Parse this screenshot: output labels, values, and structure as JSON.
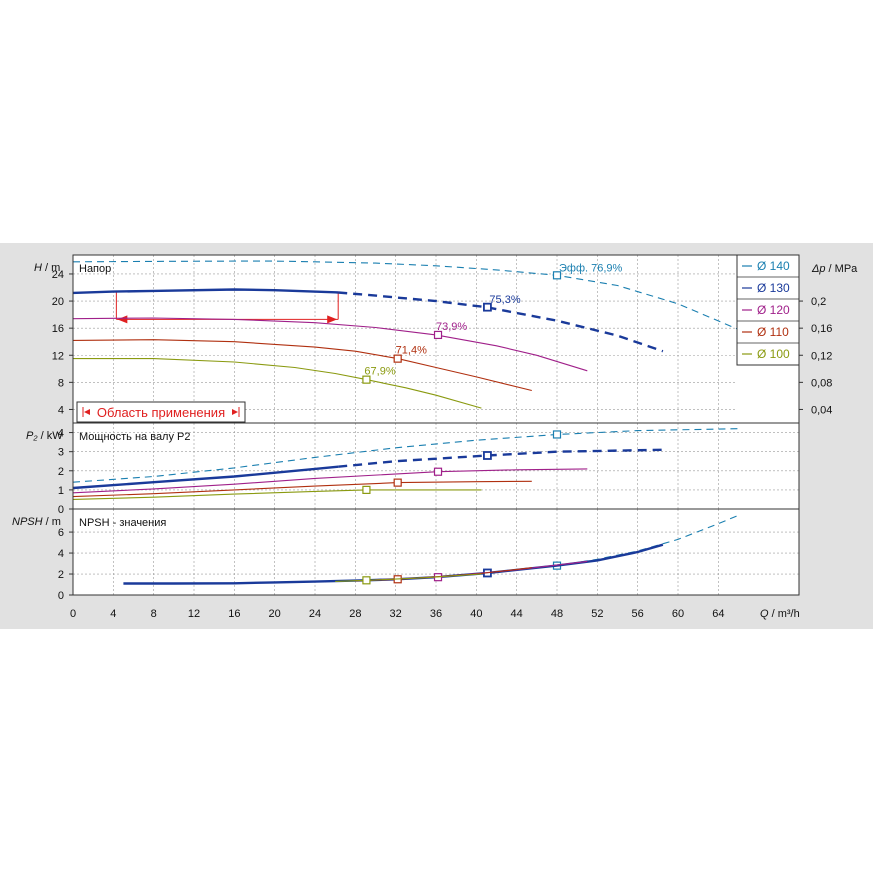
{
  "chart_data": {
    "type": "line",
    "x": {
      "label": "Q / m³/h",
      "label_var": "Q",
      "label_unit": " / m³/h",
      "range": [
        0,
        72
      ],
      "ticks": [
        0,
        4,
        8,
        12,
        16,
        20,
        24,
        28,
        32,
        36,
        40,
        44,
        48,
        52,
        56,
        60,
        64
      ]
    },
    "legend": {
      "placement": "top-right",
      "entries": [
        {
          "label": "Ø 140",
          "color": "#1a7fb0"
        },
        {
          "label": "Ø 130",
          "color": "#1a3a9a"
        },
        {
          "label": "Ø 120",
          "color": "#a0208a"
        },
        {
          "label": "Ø 110",
          "color": "#b03010"
        },
        {
          "label": "Ø 100",
          "color": "#8a9a10"
        }
      ]
    },
    "panels": [
      {
        "id": "head",
        "title": "Напор",
        "ylabel_var": "H",
        "ylabel_unit": " / m",
        "ylim": [
          2,
          26.8
        ],
        "yticks": [
          4,
          8,
          12,
          16,
          20,
          24
        ],
        "y2label_var": "Δp",
        "y2label_unit": " / MPa",
        "y2ticks": [
          "0,04",
          "0,08",
          "0,12",
          "0,16",
          "0,2"
        ],
        "y2values": [
          0.04,
          0.08,
          0.12,
          0.16,
          0.2
        ],
        "application_range": {
          "label": "Область применения",
          "x": [
            4.3,
            26.3
          ],
          "y": 21.4,
          "y_arrow": 17.3
        },
        "series": [
          {
            "legend": "Ø 140",
            "x": [
              0,
              8,
              16,
              20,
              24,
              30,
              36,
              42,
              48,
              54,
              60,
              66
            ],
            "y": [
              25.8,
              25.85,
              25.9,
              25.9,
              25.8,
              25.6,
              25.2,
              24.6,
              23.8,
              22.3,
              19.6,
              15.8
            ],
            "solid_until": 0,
            "eff": {
              "x": 48,
              "y": 23.8,
              "label": "Эфф.  76,9%"
            }
          },
          {
            "legend": "Ø 130",
            "x": [
              0,
              4,
              8,
              16,
              20,
              26,
              30,
              36,
              41,
              48,
              54,
              58.5
            ],
            "y": [
              21.2,
              21.4,
              21.5,
              21.7,
              21.6,
              21.3,
              20.8,
              20,
              19.1,
              17.1,
              14.9,
              12.6
            ],
            "solid_until": 26.3,
            "eff": {
              "x": 41.1,
              "y": 19.1,
              "label": "75,3%"
            }
          },
          {
            "legend": "Ø 120",
            "x": [
              0,
              8,
              16,
              24,
              30,
              36,
              42,
              46,
              51
            ],
            "y": [
              17.4,
              17.5,
              17.3,
              16.8,
              16.1,
              15,
              13.4,
              12,
              9.7
            ],
            "solid_until": 51,
            "eff": {
              "x": 36.2,
              "y": 15,
              "label": "73,9%"
            }
          },
          {
            "legend": "Ø 110",
            "x": [
              0,
              8,
              16,
              24,
              28,
              32.2,
              36,
              40,
              45.5
            ],
            "y": [
              14.2,
              14.3,
              14,
              13.2,
              12.6,
              11.5,
              10.2,
              8.8,
              6.8
            ],
            "solid_until": 45.5,
            "eff": {
              "x": 32.2,
              "y": 11.5,
              "label": "71,4%"
            }
          },
          {
            "legend": "Ø 100",
            "x": [
              0,
              8,
              16,
              22,
              26,
              29.1,
              33,
              36,
              40.5
            ],
            "y": [
              11.5,
              11.5,
              11,
              10.2,
              9.3,
              8.4,
              7.2,
              6.1,
              4.2
            ],
            "solid_until": 40.5,
            "eff": {
              "x": 29.1,
              "y": 8.4,
              "label": "67,9%"
            }
          }
        ]
      },
      {
        "id": "power",
        "title": "Мощность на валу P2",
        "ylabel_var": "P₂",
        "ylabel_unit": " / kW",
        "ylim": [
          0,
          4.5
        ],
        "yticks": [
          0,
          1,
          2,
          3,
          4
        ],
        "series": [
          {
            "legend": "Ø 140",
            "x": [
              0,
              8,
              16,
              24,
              32,
              40,
              48,
              56,
              66
            ],
            "y": [
              1.4,
              1.7,
              2.15,
              2.7,
              3.2,
              3.6,
              3.9,
              4.1,
              4.2
            ],
            "solid_until": 0,
            "marker": {
              "x": 48,
              "y": 3.9
            }
          },
          {
            "legend": "Ø 130",
            "x": [
              0,
              8,
              16,
              24,
              32,
              41.1,
              48,
              58.5
            ],
            "y": [
              1.1,
              1.4,
              1.7,
              2.1,
              2.5,
              2.8,
              3,
              3.1
            ],
            "solid_until": 26.3,
            "marker": {
              "x": 41.1,
              "y": 2.8
            }
          },
          {
            "legend": "Ø 120",
            "x": [
              0,
              8,
              16,
              24,
              36.2,
              44,
              51
            ],
            "y": [
              0.85,
              1.05,
              1.3,
              1.6,
              1.95,
              2.05,
              2.1
            ],
            "solid_until": 51,
            "marker": {
              "x": 36.2,
              "y": 1.95
            }
          },
          {
            "legend": "Ø 110",
            "x": [
              0,
              8,
              16,
              24,
              32.2,
              40,
              45.5
            ],
            "y": [
              0.65,
              0.8,
              1,
              1.2,
              1.38,
              1.43,
              1.45
            ],
            "solid_until": 45.5,
            "marker": {
              "x": 32.2,
              "y": 1.38
            }
          },
          {
            "legend": "Ø 100",
            "x": [
              0,
              8,
              16,
              24,
              29.1,
              35,
              40.5
            ],
            "y": [
              0.5,
              0.62,
              0.78,
              0.92,
              1,
              1,
              1
            ],
            "solid_until": 40.5,
            "marker": {
              "x": 29.1,
              "y": 1
            }
          }
        ]
      },
      {
        "id": "npsh",
        "title": "NPSH - значения",
        "ylabel_var": "NPSH",
        "ylabel_unit": " / m",
        "ylim": [
          0,
          8.2
        ],
        "yticks": [
          0,
          2,
          4,
          6
        ],
        "series": [
          {
            "legend": "Ø 140",
            "x": [
              48,
              52,
              56,
              60,
              64,
              66
            ],
            "y": [
              2.8,
              3.4,
              4.2,
              5.3,
              6.8,
              7.6
            ],
            "solid_until": 0,
            "marker": {
              "x": 48,
              "y": 2.8
            }
          },
          {
            "legend": "Ø 130",
            "x": [
              5,
              10,
              16,
              20,
              24,
              29,
              32,
              36,
              41.1,
              48,
              52,
              56,
              58.5
            ],
            "y": [
              1.1,
              1.1,
              1.12,
              1.2,
              1.28,
              1.4,
              1.5,
              1.7,
              2.1,
              2.8,
              3.3,
              4.1,
              4.8
            ],
            "solid_until": 58.5,
            "marker": {
              "x": 41.1,
              "y": 2.1
            }
          },
          {
            "legend": "Ø 120",
            "x": [
              30,
              36.2,
              44,
              51
            ],
            "y": [
              1.45,
              1.7,
              2.4,
              3.2
            ],
            "solid_until": 51,
            "marker": {
              "x": 36.2,
              "y": 1.7
            }
          },
          {
            "legend": "Ø 110",
            "x": [
              28,
              32.2,
              40,
              45.5
            ],
            "y": [
              1.35,
              1.5,
              2,
              2.6
            ],
            "solid_until": 45.5,
            "marker": {
              "x": 32.2,
              "y": 1.5
            }
          },
          {
            "legend": "Ø 100",
            "x": [
              26,
              29.1,
              35,
              40.5
            ],
            "y": [
              1.3,
              1.4,
              1.65,
              2
            ],
            "solid_until": 40.5,
            "marker": {
              "x": 29.1,
              "y": 1.4
            }
          }
        ]
      }
    ]
  }
}
